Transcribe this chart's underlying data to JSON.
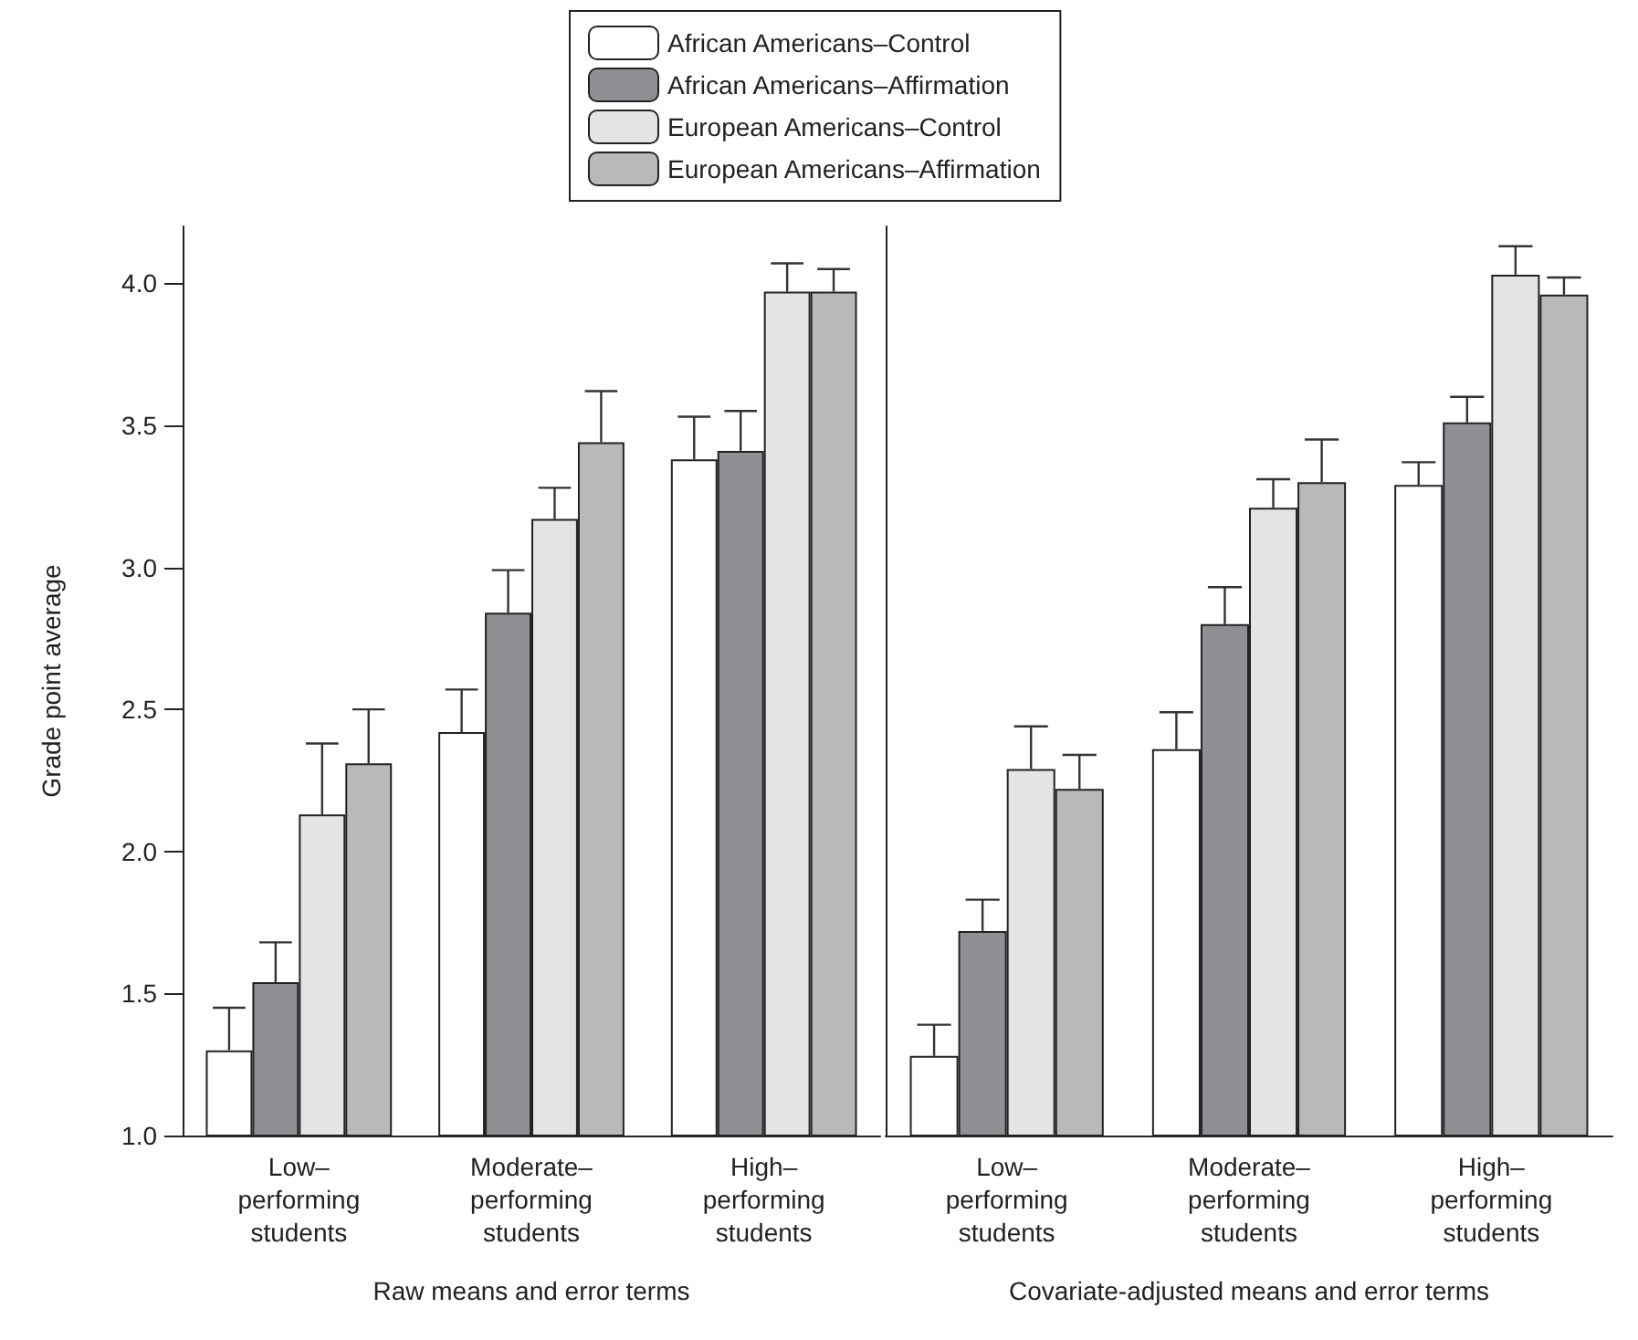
{
  "chart_data": [
    {
      "type": "bar",
      "xlabel": "Raw means and error terms",
      "ylabel": "Grade point average",
      "categories": [
        "Low–\nperforming\nstudents",
        "Moderate–\nperforming\nstudents",
        "High–\nperforming\nstudents"
      ],
      "series": [
        {
          "name": "African Americans–Control",
          "color": "#ffffff",
          "values": [
            1.3,
            2.42,
            3.38
          ],
          "errors": [
            0.15,
            0.15,
            0.15
          ]
        },
        {
          "name": "African Americans–Affirmation",
          "color": "#8f9094",
          "values": [
            1.54,
            2.84,
            3.41
          ],
          "errors": [
            0.14,
            0.15,
            0.14
          ]
        },
        {
          "name": "European Americans–Control",
          "color": "#e4e4e4",
          "values": [
            2.13,
            3.17,
            3.97
          ],
          "errors": [
            0.25,
            0.11,
            0.1
          ]
        },
        {
          "name": "European Americans–Affirmation",
          "color": "#b9b9b9",
          "values": [
            2.31,
            3.44,
            3.97
          ],
          "errors": [
            0.19,
            0.18,
            0.08
          ]
        }
      ],
      "ylim": [
        1.0,
        4.2
      ],
      "yticks": [
        {
          "value": 1,
          "label": "1.0"
        },
        1.5,
        {
          "value": 2,
          "label": "2.0"
        },
        2.5,
        {
          "value": 3,
          "label": "3.0"
        },
        3.5,
        {
          "value": 4,
          "label": "4.0"
        }
      ],
      "legend": "top",
      "grid": false
    },
    {
      "type": "bar",
      "xlabel": "Covariate-adjusted means and error terms",
      "categories": [
        "Low–\nperforming\nstudents",
        "Moderate–\nperforming\nstudents",
        "High–\nperforming\nstudents"
      ],
      "series": [
        {
          "color": "#ffffff",
          "values": [
            1.28,
            2.36,
            3.29
          ],
          "errors": [
            0.11,
            0.13,
            0.08
          ]
        },
        {
          "color": "#8f9094",
          "values": [
            1.72,
            2.8,
            3.51
          ],
          "errors": [
            0.11,
            0.13,
            0.09
          ]
        },
        {
          "color": "#e4e4e4",
          "values": [
            2.29,
            3.21,
            4.03
          ],
          "errors": [
            0.15,
            0.1,
            0.1
          ]
        },
        {
          "color": "#b9b9b9",
          "values": [
            2.22,
            3.3,
            3.96
          ],
          "errors": [
            0.12,
            0.15,
            0.06
          ]
        }
      ],
      "ylim": [
        1.0,
        4.2
      ],
      "tick_labels": "x",
      "grid": false
    }
  ]
}
